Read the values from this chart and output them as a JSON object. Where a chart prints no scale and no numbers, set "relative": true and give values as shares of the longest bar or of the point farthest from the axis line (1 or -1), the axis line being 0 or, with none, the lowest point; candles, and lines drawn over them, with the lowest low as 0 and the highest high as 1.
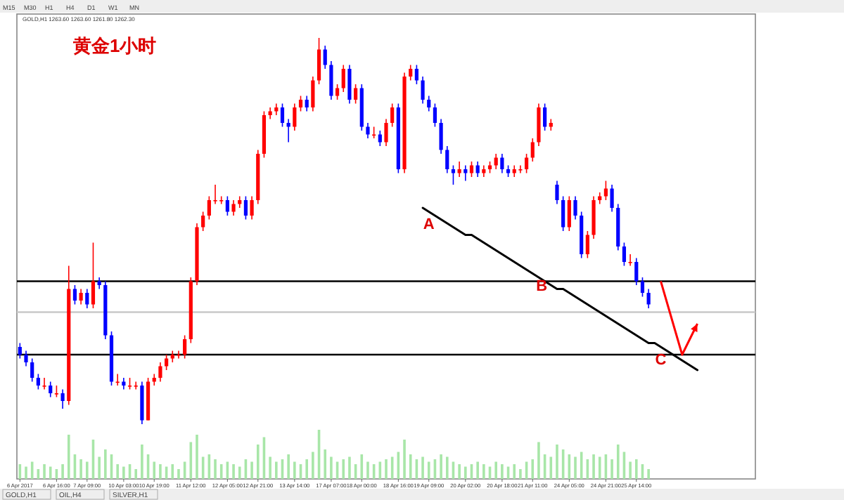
{
  "chart_data": [
    {
      "type": "candlestick",
      "title": "黄金1小时",
      "subtitle": "GOLD,H1 1263.60 1263.60 1261.80 1262.30",
      "relative": true,
      "categories": [
        "6 Apr 2017",
        null,
        null,
        null,
        null,
        null,
        "6 Apr 16:00",
        null,
        null,
        null,
        null,
        "7 Apr 09:00",
        null,
        null,
        null,
        null,
        null,
        "10 Apr 03:00",
        null,
        null,
        null,
        null,
        "10 Apr 19:00",
        null,
        null,
        null,
        null,
        null,
        "11 Apr 12:00",
        null,
        null,
        null,
        null,
        null,
        "12 Apr 05:00",
        null,
        null,
        null,
        null,
        "12 Apr 21:00",
        null,
        null,
        null,
        null,
        null,
        "13 Apr 14:00",
        null,
        null,
        null,
        null,
        null,
        "17 Apr 07:00",
        null,
        null,
        null,
        null,
        "18 Apr 00:00",
        null,
        null,
        null,
        null,
        null,
        "18 Apr 16:00",
        null,
        null,
        null,
        null,
        "19 Apr 09:00",
        null,
        null,
        null,
        null,
        null,
        "20 Apr 02:00",
        null,
        null,
        null,
        null,
        null,
        "20 Apr 18:00",
        null,
        null,
        null,
        null,
        "21 Apr 11:00",
        null,
        null,
        null,
        null,
        null,
        "24 Apr 05:00",
        null,
        null,
        null,
        null,
        null,
        "24 Apr 21:00",
        null,
        null,
        null,
        null,
        "25 Apr 14:00",
        null,
        null,
        null,
        null,
        null,
        null,
        null,
        null,
        null,
        null,
        null,
        null,
        null,
        null,
        null,
        null,
        null,
        null,
        null
      ],
      "colors": [
        "#0000ff",
        "#0000ff",
        "#0000ff",
        "#0000ff",
        "#ff0000",
        "#0000ff",
        "#ff0000",
        "#0000ff",
        "#ff0000",
        "#0000ff",
        "#ff0000",
        "#0000ff",
        "#ff0000",
        "#0000ff",
        "#0000ff",
        "#0000ff",
        "#ff0000",
        "#0000ff",
        "#ff0000",
        "#ff0000",
        "#0000ff",
        "#ff0000",
        "#ff0000",
        "#ff0000",
        "#ff0000",
        "#ff0000",
        "#ff0000",
        "#ff0000",
        "#ff0000",
        "#ff0000",
        "#ff0000",
        "#ff0000",
        "#ff0000",
        "#ff0000",
        "#0000ff",
        "#ff0000",
        "#ff0000",
        "#0000ff",
        "#ff0000",
        "#ff0000",
        "#ff0000",
        "#ff0000",
        "#ff0000",
        "#0000ff",
        "#0000ff",
        "#ff0000",
        "#ff0000",
        "#0000ff",
        "#ff0000",
        "#ff0000",
        "#0000ff",
        "#0000ff",
        "#ff0000",
        "#ff0000",
        "#0000ff",
        "#ff0000",
        "#0000ff",
        "#0000ff",
        "#ff0000",
        "#0000ff",
        "#ff0000",
        "#ff0000",
        "#0000ff",
        "#ff0000",
        "#ff0000",
        "#0000ff",
        "#0000ff",
        "#0000ff",
        "#0000ff",
        "#0000ff",
        "#0000ff",
        "#0000ff",
        "#ff0000",
        "#0000ff",
        "#ff0000",
        "#0000ff",
        "#ff0000",
        "#ff0000",
        "#ff0000",
        "#0000ff",
        "#0000ff",
        "#ff0000",
        "#ff0000",
        "#ff0000",
        "#ff0000",
        "#ff0000",
        "#0000ff",
        "#ff0000",
        "#0000ff",
        "#0000ff",
        "#ff0000",
        "#0000ff",
        "#0000ff",
        "#ff0000",
        "#ff0000",
        "#ff0000",
        "#ff0000",
        "#0000ff",
        "#0000ff",
        "#0000ff",
        "#ff0000",
        "#0000ff",
        "#0000ff",
        "#0000ff",
        null,
        null,
        null,
        null,
        null,
        null,
        null,
        null,
        null,
        null,
        null,
        null,
        null,
        null,
        null,
        null,
        null
      ],
      "ohlc": [
        [
          0.2,
          0.21,
          0.17,
          0.18
        ],
        [
          0.18,
          0.19,
          0.15,
          0.16
        ],
        [
          0.16,
          0.17,
          0.11,
          0.12
        ],
        [
          0.12,
          0.13,
          0.09,
          0.1
        ],
        [
          0.1,
          0.12,
          0.09,
          0.1
        ],
        [
          0.1,
          0.11,
          0.07,
          0.08
        ],
        [
          0.08,
          0.1,
          0.07,
          0.08
        ],
        [
          0.08,
          0.09,
          0.04,
          0.06
        ],
        [
          0.06,
          0.41,
          0.05,
          0.35
        ],
        [
          0.35,
          0.36,
          0.31,
          0.32
        ],
        [
          0.32,
          0.35,
          0.31,
          0.34
        ],
        [
          0.34,
          0.35,
          0.3,
          0.31
        ],
        [
          0.31,
          0.47,
          0.3,
          0.37
        ],
        [
          0.37,
          0.38,
          0.35,
          0.36
        ],
        [
          0.36,
          0.37,
          0.22,
          0.23
        ],
        [
          0.23,
          0.24,
          0.1,
          0.11
        ],
        [
          0.11,
          0.13,
          0.1,
          0.11
        ],
        [
          0.11,
          0.12,
          0.09,
          0.1
        ],
        [
          0.1,
          0.12,
          0.09,
          0.1
        ],
        [
          0.1,
          0.11,
          0.09,
          0.1
        ],
        [
          0.1,
          0.11,
          0,
          0.01
        ],
        [
          0.01,
          0.12,
          0.01,
          0.11
        ],
        [
          0.11,
          0.13,
          0.1,
          0.12
        ],
        [
          0.12,
          0.16,
          0.11,
          0.15
        ],
        [
          0.15,
          0.18,
          0.14,
          0.17
        ],
        [
          0.17,
          0.19,
          0.16,
          0.18
        ],
        [
          0.18,
          0.19,
          0.17,
          0.18
        ],
        [
          0.18,
          0.23,
          0.17,
          0.22
        ],
        [
          0.22,
          0.38,
          0.21,
          0.37
        ],
        [
          0.37,
          0.52,
          0.36,
          0.51
        ],
        [
          0.51,
          0.55,
          0.5,
          0.54
        ],
        [
          0.54,
          0.59,
          0.53,
          0.58
        ],
        [
          0.58,
          0.62,
          0.57,
          0.58
        ],
        [
          0.58,
          0.59,
          0.57,
          0.58
        ],
        [
          0.58,
          0.59,
          0.54,
          0.55
        ],
        [
          0.55,
          0.58,
          0.54,
          0.57
        ],
        [
          0.57,
          0.59,
          0.56,
          0.58
        ],
        [
          0.58,
          0.59,
          0.53,
          0.54
        ],
        [
          0.54,
          0.59,
          0.53,
          0.58
        ],
        [
          0.58,
          0.71,
          0.57,
          0.7
        ],
        [
          0.7,
          0.81,
          0.69,
          0.8
        ],
        [
          0.8,
          0.82,
          0.79,
          0.81
        ],
        [
          0.81,
          0.83,
          0.8,
          0.82
        ],
        [
          0.82,
          0.83,
          0.77,
          0.78
        ],
        [
          0.78,
          0.79,
          0.73,
          0.77
        ],
        [
          0.77,
          0.83,
          0.76,
          0.82
        ],
        [
          0.82,
          0.85,
          0.81,
          0.84
        ],
        [
          0.84,
          0.85,
          0.81,
          0.82
        ],
        [
          0.82,
          0.9,
          0.81,
          0.89
        ],
        [
          0.89,
          1,
          0.88,
          0.97
        ],
        [
          0.97,
          0.98,
          0.92,
          0.93
        ],
        [
          0.93,
          0.94,
          0.84,
          0.85
        ],
        [
          0.85,
          0.88,
          0.84,
          0.87
        ],
        [
          0.87,
          0.93,
          0.86,
          0.92
        ],
        [
          0.92,
          0.93,
          0.83,
          0.84
        ],
        [
          0.84,
          0.88,
          0.83,
          0.87
        ],
        [
          0.87,
          0.88,
          0.76,
          0.77
        ],
        [
          0.77,
          0.78,
          0.74,
          0.75
        ],
        [
          0.75,
          0.77,
          0.74,
          0.75
        ],
        [
          0.75,
          0.76,
          0.72,
          0.73
        ],
        [
          0.73,
          0.79,
          0.72,
          0.78
        ],
        [
          0.78,
          0.83,
          0.77,
          0.82
        ],
        [
          0.82,
          0.83,
          0.65,
          0.66
        ],
        [
          0.66,
          0.91,
          0.65,
          0.9
        ],
        [
          0.9,
          0.93,
          0.89,
          0.92
        ],
        [
          0.92,
          0.93,
          0.88,
          0.89
        ],
        [
          0.89,
          0.9,
          0.83,
          0.84
        ],
        [
          0.84,
          0.85,
          0.81,
          0.82
        ],
        [
          0.82,
          0.83,
          0.77,
          0.78
        ],
        [
          0.78,
          0.79,
          0.7,
          0.71
        ],
        [
          0.71,
          0.72,
          0.65,
          0.66
        ],
        [
          0.66,
          0.67,
          0.62,
          0.65
        ],
        [
          0.65,
          0.68,
          0.64,
          0.66
        ],
        [
          0.66,
          0.67,
          0.63,
          0.65
        ],
        [
          0.65,
          0.68,
          0.64,
          0.67
        ],
        [
          0.67,
          0.68,
          0.64,
          0.65
        ],
        [
          0.65,
          0.67,
          0.64,
          0.66
        ],
        [
          0.66,
          0.68,
          0.65,
          0.67
        ],
        [
          0.67,
          0.7,
          0.66,
          0.69
        ],
        [
          0.69,
          0.7,
          0.65,
          0.66
        ],
        [
          0.66,
          0.67,
          0.64,
          0.65
        ],
        [
          0.65,
          0.67,
          0.64,
          0.66
        ],
        [
          0.66,
          0.67,
          0.65,
          0.66
        ],
        [
          0.66,
          0.7,
          0.65,
          0.69
        ],
        [
          0.69,
          0.74,
          0.68,
          0.73
        ],
        [
          0.73,
          0.83,
          0.72,
          0.82
        ],
        [
          0.82,
          0.83,
          0.76,
          0.77
        ],
        [
          0.77,
          0.79,
          0.76,
          0.78
        ],
        [
          0.62,
          0.63,
          0.57,
          0.58
        ],
        [
          0.58,
          0.59,
          0.5,
          0.51
        ],
        [
          0.51,
          0.59,
          0.5,
          0.58
        ],
        [
          0.58,
          0.59,
          0.53,
          0.54
        ],
        [
          0.54,
          0.55,
          0.43,
          0.44
        ],
        [
          0.44,
          0.5,
          0.43,
          0.49
        ],
        [
          0.49,
          0.59,
          0.48,
          0.58
        ],
        [
          0.58,
          0.6,
          0.57,
          0.59
        ],
        [
          0.59,
          0.63,
          0.58,
          0.61
        ],
        [
          0.61,
          0.62,
          0.55,
          0.56
        ],
        [
          0.56,
          0.57,
          0.45,
          0.46
        ],
        [
          0.46,
          0.47,
          0.41,
          0.42
        ],
        [
          0.42,
          0.44,
          0.41,
          0.42
        ],
        [
          0.42,
          0.43,
          0.36,
          0.37
        ],
        [
          0.37,
          0.38,
          0.33,
          0.34
        ],
        [
          0.34,
          0.35,
          0.3,
          0.31
        ],
        null,
        null,
        null,
        null,
        null,
        null,
        null,
        null,
        null,
        null,
        null,
        null,
        null,
        null,
        null,
        null,
        null
      ],
      "series": [
        {
          "type": "line",
          "color": "#000000",
          "values": [
            null,
            null,
            null,
            null,
            null,
            null,
            null,
            null,
            null,
            null,
            null,
            null,
            null,
            null,
            null,
            null,
            null,
            null,
            null,
            null,
            null,
            null,
            null,
            null,
            null,
            null,
            null,
            null,
            null,
            null,
            null,
            null,
            null,
            null,
            null,
            null,
            null,
            null,
            null,
            null,
            null,
            null,
            null,
            null,
            null,
            null,
            null,
            null,
            null,
            null,
            null,
            null,
            null,
            null,
            null,
            null,
            null,
            null,
            null,
            null,
            null,
            null,
            null,
            null,
            null,
            null,
            0.56,
            0.55,
            0.54,
            0.53,
            0.52,
            0.51,
            0.5,
            0.49,
            0.49,
            0.48,
            0.47,
            0.46,
            0.45,
            0.44,
            0.43,
            0.42,
            0.41,
            0.4,
            0.39,
            0.38,
            0.37,
            0.36,
            0.35,
            0.35,
            0.34,
            0.33,
            0.32,
            0.31,
            0.3,
            0.29,
            0.28,
            0.27,
            0.26,
            0.25,
            0.24,
            0.23,
            0.22,
            0.21,
            0.21,
            0.2,
            0.19,
            0.18,
            0.17,
            0.16,
            0.15,
            0.14,
            null,
            null,
            null,
            null,
            null,
            null,
            null,
            null,
            null
          ]
        }
      ],
      "ref_lines": [
        {
          "axis": "y",
          "value": 0.37,
          "label": null,
          "color": "#000000"
        },
        {
          "axis": "y",
          "value": 0.29,
          "label": null,
          "color": "#c8c8c8"
        },
        {
          "axis": "y",
          "value": 0.18,
          "label": null,
          "color": "#000000"
        }
      ],
      "annotations": [
        "A",
        "B",
        "C",
        "M15",
        "M30",
        "H1",
        "H4",
        "D1",
        "W1",
        "MN"
      ],
      "grid": false
    },
    {
      "type": "bar",
      "relative": true,
      "color": "#a8e6a8",
      "values": [
        0.3,
        0.25,
        0.35,
        0.2,
        0.3,
        0.25,
        0.2,
        0.3,
        0.9,
        0.5,
        0.4,
        0.35,
        0.8,
        0.45,
        0.6,
        0.5,
        0.3,
        0.25,
        0.3,
        0.2,
        0.7,
        0.5,
        0.35,
        0.3,
        0.25,
        0.3,
        0.2,
        0.35,
        0.75,
        0.9,
        0.45,
        0.5,
        0.4,
        0.3,
        0.35,
        0.3,
        0.25,
        0.4,
        0.35,
        0.7,
        0.85,
        0.45,
        0.35,
        0.4,
        0.5,
        0.35,
        0.3,
        0.4,
        0.55,
        1,
        0.6,
        0.45,
        0.35,
        0.4,
        0.45,
        0.3,
        0.5,
        0.35,
        0.3,
        0.35,
        0.4,
        0.45,
        0.55,
        0.8,
        0.5,
        0.4,
        0.45,
        0.35,
        0.4,
        0.5,
        0.45,
        0.35,
        0.3,
        0.25,
        0.3,
        0.35,
        0.3,
        0.25,
        0.35,
        0.3,
        0.25,
        0.3,
        0.2,
        0.35,
        0.4,
        0.75,
        0.5,
        0.45,
        0.7,
        0.6,
        0.5,
        0.45,
        0.55,
        0.4,
        0.5,
        0.45,
        0.5,
        0.4,
        0.7,
        0.55,
        0.35,
        0.4,
        0.3,
        0.2,
        null,
        null,
        null,
        null,
        null,
        null,
        null,
        null,
        null,
        null,
        null,
        null,
        null,
        null,
        null,
        null,
        null
      ],
      "annotations": [
        "GOLD,H1",
        "OIL,H4",
        "SILVER,H1"
      ]
    }
  ]
}
